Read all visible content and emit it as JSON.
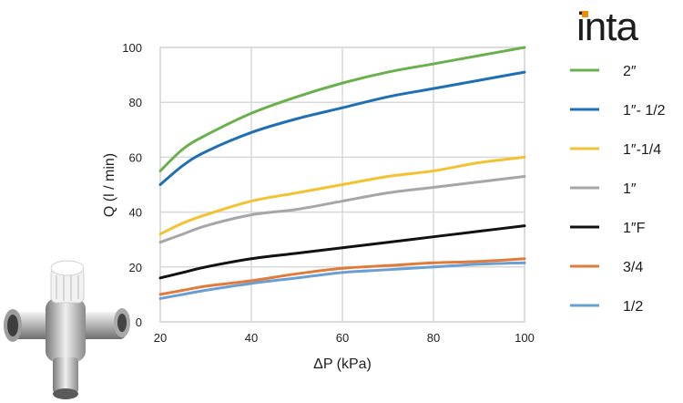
{
  "brand": {
    "name": "inta",
    "dot_color": "#f08a00"
  },
  "product_image": {
    "icon": "thermostatic-mixing-valve-icon"
  },
  "chart_data": {
    "type": "line",
    "title": "",
    "xlabel": "ΔP (kPa)",
    "ylabel": "Q (l / min)",
    "xlim": [
      20,
      100
    ],
    "ylim": [
      0,
      100
    ],
    "x_ticks": [
      "20",
      "40",
      "60",
      "80",
      "100"
    ],
    "y_ticks": [
      "0",
      "20",
      "40",
      "60",
      "80",
      "100"
    ],
    "grid": true,
    "legend_position": "right",
    "x": [
      20,
      25,
      30,
      40,
      50,
      60,
      70,
      80,
      90,
      100
    ],
    "series": [
      {
        "name": "2″",
        "color": "#6ab04c",
        "values": [
          55,
          63,
          68,
          76,
          82,
          87,
          91,
          94,
          97,
          100
        ]
      },
      {
        "name": "1″- 1/2",
        "color": "#1f6fb5",
        "values": [
          50,
          57,
          62,
          69,
          74,
          78,
          82,
          85,
          88,
          91
        ]
      },
      {
        "name": "1″-1/4",
        "color": "#f2c230",
        "values": [
          32,
          36,
          39,
          44,
          47,
          50,
          53,
          55,
          58,
          60
        ]
      },
      {
        "name": "1″",
        "color": "#a6a6a6",
        "values": [
          29,
          32,
          35,
          39,
          41,
          44,
          47,
          49,
          51,
          53
        ]
      },
      {
        "name": "1″F",
        "color": "#111111",
        "values": [
          16,
          18,
          20,
          23,
          25,
          27,
          29,
          31,
          33,
          35
        ]
      },
      {
        "name": "3/4",
        "color": "#e07b39",
        "values": [
          10,
          11.5,
          13,
          15,
          17.5,
          19.5,
          20.5,
          21.5,
          22,
          23
        ]
      },
      {
        "name": "1/2",
        "color": "#6a9fd4",
        "values": [
          8.5,
          10,
          11.5,
          14,
          16,
          18,
          19,
          20,
          21,
          21.5
        ]
      }
    ]
  }
}
